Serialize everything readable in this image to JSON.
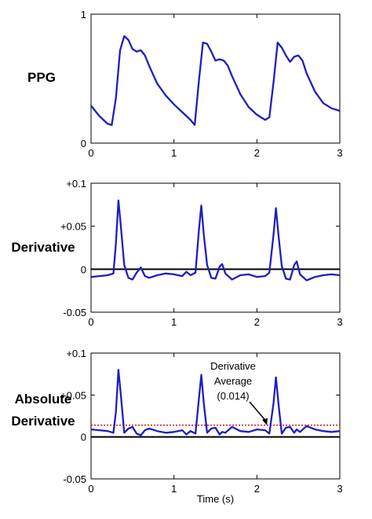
{
  "chart_data": [
    {
      "type": "line",
      "name": "ppg-panel",
      "row_label": "PPG",
      "xlabel": "",
      "xlim": [
        0,
        3
      ],
      "ylim": [
        0,
        1
      ],
      "xticks": [
        0,
        1,
        2,
        3
      ],
      "xtick_labels": [
        "0",
        "1",
        "2",
        "3"
      ],
      "yticks": [
        0,
        1
      ],
      "ytick_labels": [
        "0",
        "1"
      ],
      "zero_line": false,
      "series": [
        {
          "color": "#1f1fbf",
          "x": [
            0,
            0.05,
            0.1,
            0.15,
            0.2,
            0.25,
            0.3,
            0.35,
            0.4,
            0.45,
            0.5,
            0.55,
            0.6,
            0.65,
            0.7,
            0.8,
            0.9,
            1.0,
            1.1,
            1.2,
            1.25,
            1.3,
            1.35,
            1.4,
            1.45,
            1.5,
            1.55,
            1.6,
            1.65,
            1.7,
            1.8,
            1.9,
            2.0,
            2.1,
            2.15,
            2.2,
            2.25,
            2.3,
            2.35,
            2.4,
            2.45,
            2.5,
            2.55,
            2.6,
            2.7,
            2.8,
            2.9,
            3.0
          ],
          "y": [
            0.29,
            0.25,
            0.21,
            0.18,
            0.15,
            0.14,
            0.35,
            0.72,
            0.83,
            0.8,
            0.73,
            0.71,
            0.72,
            0.68,
            0.6,
            0.46,
            0.37,
            0.3,
            0.24,
            0.18,
            0.14,
            0.48,
            0.78,
            0.77,
            0.71,
            0.64,
            0.65,
            0.64,
            0.6,
            0.52,
            0.38,
            0.28,
            0.22,
            0.18,
            0.2,
            0.47,
            0.78,
            0.74,
            0.68,
            0.63,
            0.67,
            0.68,
            0.64,
            0.54,
            0.4,
            0.31,
            0.27,
            0.25
          ]
        }
      ]
    },
    {
      "type": "line",
      "name": "derivative-panel",
      "row_label": "Derivative",
      "xlabel": "",
      "xlim": [
        0,
        3
      ],
      "ylim": [
        -0.05,
        0.1
      ],
      "xticks": [
        0,
        1,
        2,
        3
      ],
      "xtick_labels": [
        "0",
        "1",
        "2",
        "3"
      ],
      "yticks": [
        -0.05,
        0,
        0.05,
        0.1
      ],
      "ytick_labels": [
        "-0.05",
        "0",
        "+0.05",
        "+0.1"
      ],
      "zero_line": true,
      "series": [
        {
          "color": "#1f1fbf",
          "x": [
            0,
            0.1,
            0.2,
            0.27,
            0.3,
            0.33,
            0.36,
            0.4,
            0.45,
            0.5,
            0.55,
            0.6,
            0.65,
            0.7,
            0.8,
            0.9,
            1.0,
            1.1,
            1.15,
            1.2,
            1.26,
            1.3,
            1.33,
            1.36,
            1.4,
            1.45,
            1.5,
            1.55,
            1.58,
            1.62,
            1.7,
            1.8,
            1.9,
            2.0,
            2.1,
            2.15,
            2.2,
            2.23,
            2.26,
            2.3,
            2.35,
            2.4,
            2.45,
            2.48,
            2.52,
            2.6,
            2.7,
            2.8,
            2.9,
            3.0
          ],
          "y": [
            -0.009,
            -0.008,
            -0.007,
            -0.005,
            0.03,
            0.08,
            0.05,
            0.005,
            -0.01,
            -0.012,
            -0.004,
            0.002,
            -0.008,
            -0.01,
            -0.007,
            -0.005,
            -0.006,
            -0.008,
            -0.003,
            -0.007,
            -0.004,
            0.045,
            0.074,
            0.04,
            0.005,
            -0.01,
            -0.011,
            0.003,
            0.006,
            -0.005,
            -0.012,
            -0.007,
            -0.006,
            -0.009,
            -0.008,
            -0.004,
            0.04,
            0.071,
            0.04,
            0.004,
            -0.011,
            -0.012,
            0.005,
            0.009,
            -0.006,
            -0.013,
            -0.009,
            -0.007,
            -0.006,
            -0.007
          ]
        }
      ]
    },
    {
      "type": "line",
      "name": "absolute-derivative-panel",
      "row_label": "Absolute Derivative",
      "xlabel": "Time (s)",
      "xlim": [
        0,
        3
      ],
      "ylim": [
        -0.05,
        0.1
      ],
      "xticks": [
        0,
        1,
        2,
        3
      ],
      "xtick_labels": [
        "0",
        "1",
        "2",
        "3"
      ],
      "yticks": [
        -0.05,
        0,
        0.05,
        0.1
      ],
      "ytick_labels": [
        "-0.05",
        "0",
        "+0.05",
        "+0.1"
      ],
      "zero_line": true,
      "reference_line": {
        "y": 0.014,
        "color": "#e02020",
        "style": "dotted"
      },
      "annotation": {
        "lines": [
          "Derivative",
          "Average",
          "(0.014)"
        ],
        "arrow_to": [
          2.12,
          0.014
        ]
      },
      "series": [
        {
          "color": "#1f1fbf",
          "x": [
            0,
            0.1,
            0.2,
            0.27,
            0.3,
            0.33,
            0.36,
            0.4,
            0.45,
            0.5,
            0.55,
            0.6,
            0.65,
            0.7,
            0.8,
            0.9,
            1.0,
            1.1,
            1.15,
            1.2,
            1.26,
            1.3,
            1.33,
            1.36,
            1.4,
            1.45,
            1.5,
            1.55,
            1.58,
            1.62,
            1.7,
            1.8,
            1.9,
            2.0,
            2.1,
            2.15,
            2.2,
            2.23,
            2.26,
            2.3,
            2.35,
            2.4,
            2.45,
            2.48,
            2.52,
            2.6,
            2.7,
            2.8,
            2.9,
            3.0
          ],
          "y": [
            0.009,
            0.008,
            0.007,
            0.005,
            0.03,
            0.08,
            0.05,
            0.005,
            0.01,
            0.012,
            0.004,
            0.002,
            0.008,
            0.01,
            0.007,
            0.005,
            0.006,
            0.008,
            0.003,
            0.007,
            0.004,
            0.045,
            0.074,
            0.04,
            0.005,
            0.01,
            0.011,
            0.003,
            0.006,
            0.005,
            0.012,
            0.007,
            0.006,
            0.009,
            0.008,
            0.004,
            0.04,
            0.071,
            0.04,
            0.004,
            0.011,
            0.012,
            0.005,
            0.009,
            0.006,
            0.013,
            0.009,
            0.007,
            0.006,
            0.007
          ]
        }
      ]
    }
  ]
}
